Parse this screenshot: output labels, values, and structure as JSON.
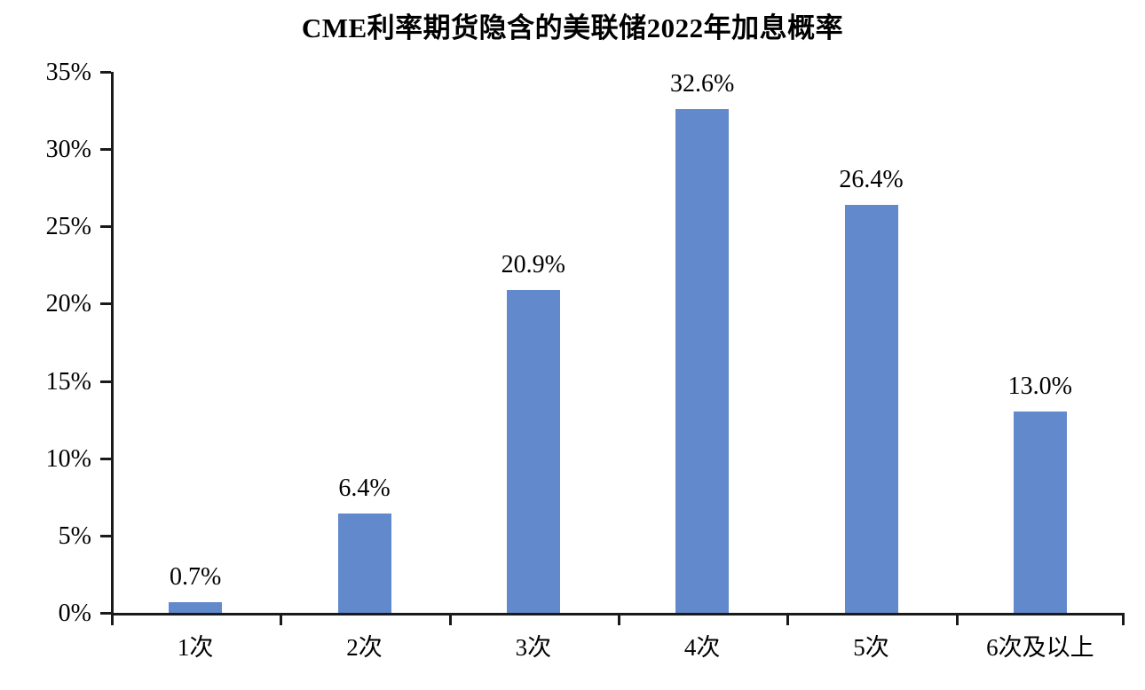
{
  "chart_data": {
    "type": "bar",
    "title": "CME利率期货隐含的美联储2022年加息概率",
    "categories": [
      "1次",
      "2次",
      "3次",
      "4次",
      "5次",
      "6次及以上"
    ],
    "values": [
      0.7,
      6.4,
      20.9,
      32.6,
      26.4,
      13.0
    ],
    "data_labels": [
      "0.7%",
      "6.4%",
      "20.9%",
      "32.6%",
      "26.4%",
      "13.0%"
    ],
    "xlabel": "",
    "ylabel": "",
    "ylim": [
      0,
      35
    ],
    "ytick_step": 5,
    "ytick_labels": [
      "0%",
      "5%",
      "10%",
      "15%",
      "20%",
      "25%",
      "30%",
      "35%"
    ],
    "grid": "off",
    "legend": "none",
    "colors": {
      "bar": "#6189CB",
      "axis": "#1a1a1a",
      "text": "#000000",
      "background": "#ffffff"
    }
  }
}
